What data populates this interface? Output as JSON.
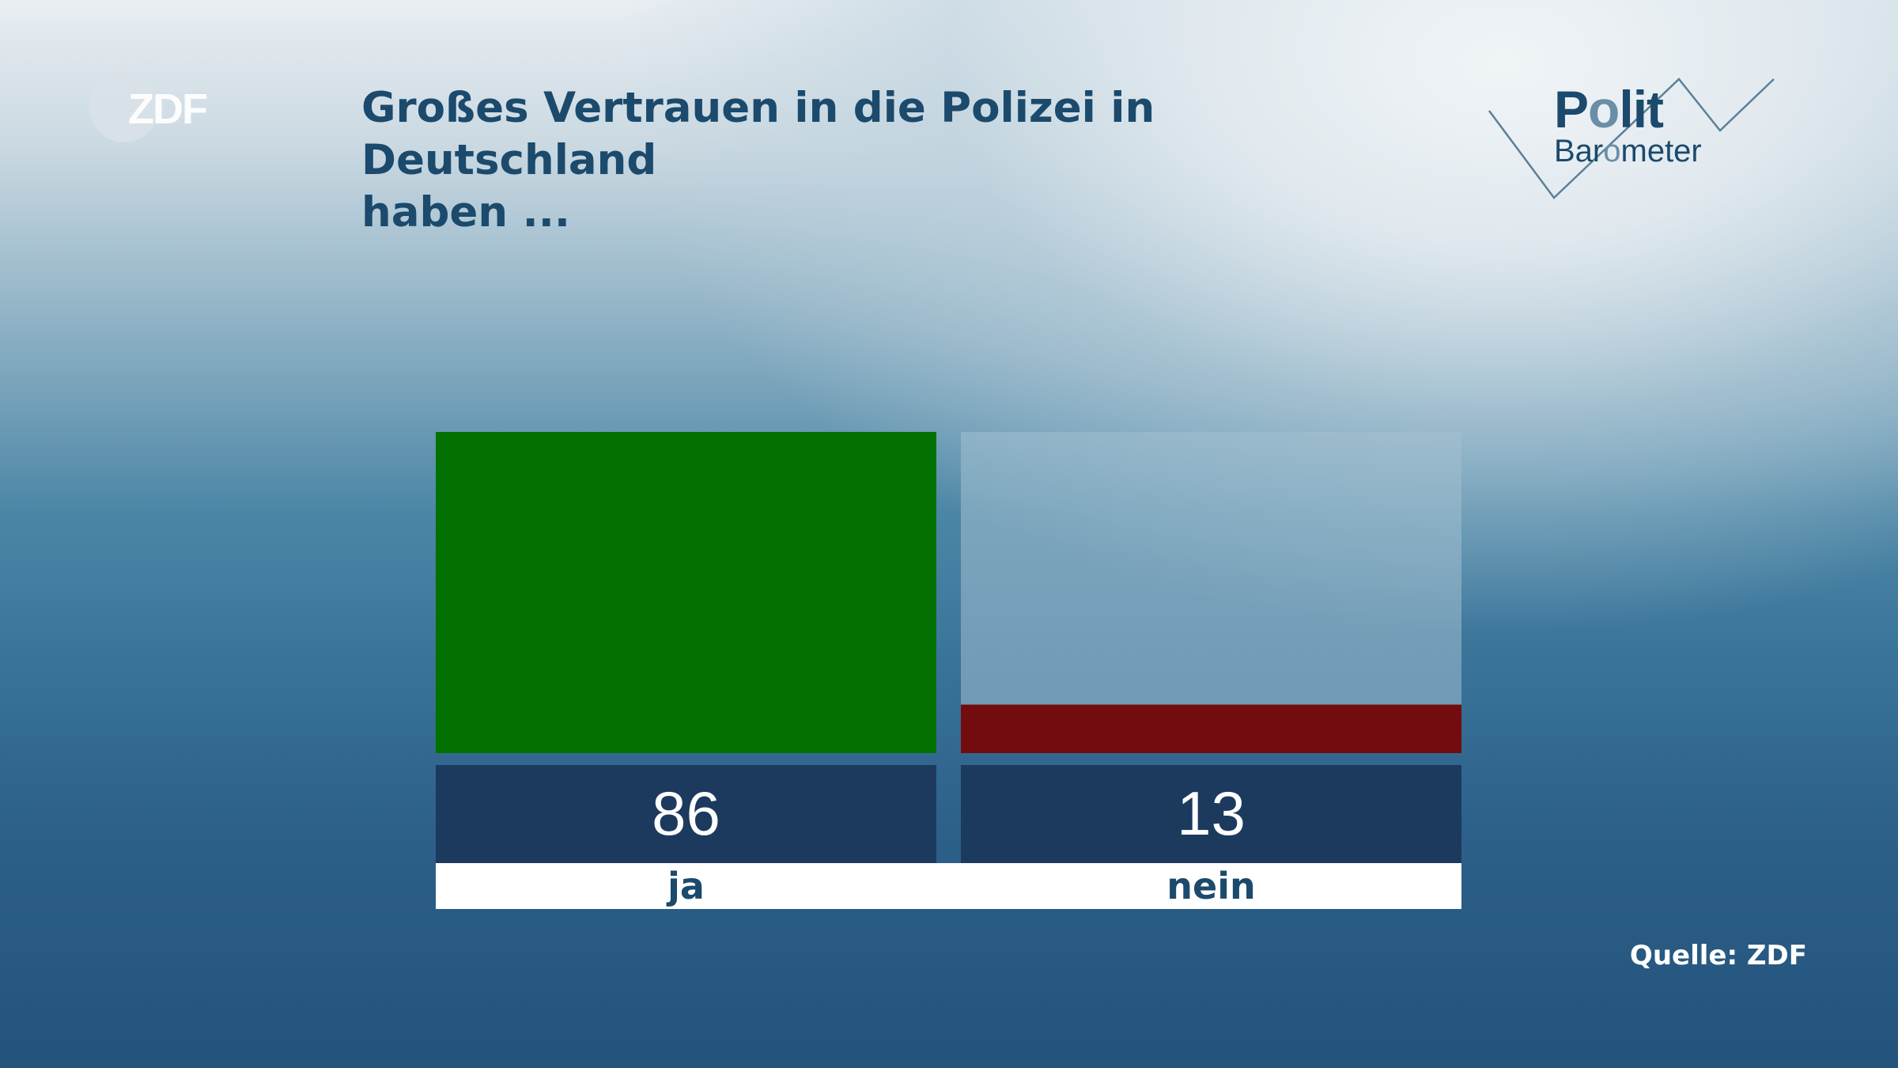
{
  "header": {
    "title_line1": "Großes Vertrauen in die Polizei in Deutschland",
    "title_line2": "haben ..."
  },
  "branding": {
    "broadcaster_logo": "ZDF",
    "show_logo_line1": "Polit",
    "show_logo_line2": "Barometer"
  },
  "footer": {
    "source": "Quelle: ZDF"
  },
  "colors": {
    "ja": "#027102",
    "nein": "#720c0e",
    "bar_background": "#a2c0d0",
    "value_box": "#1c3a5e",
    "label_box": "#ffffff",
    "title": "#1b4a6c"
  },
  "chart_data": {
    "type": "bar",
    "title": "Großes Vertrauen in die Polizei in Deutschland haben ...",
    "categories": [
      "ja",
      "nein"
    ],
    "values": [
      86,
      13
    ],
    "value_labels": [
      "86",
      "13"
    ],
    "ylim": [
      0,
      86
    ],
    "xlabel": "",
    "ylabel": "",
    "grid": false,
    "legend": "none",
    "source": "Quelle: ZDF"
  }
}
